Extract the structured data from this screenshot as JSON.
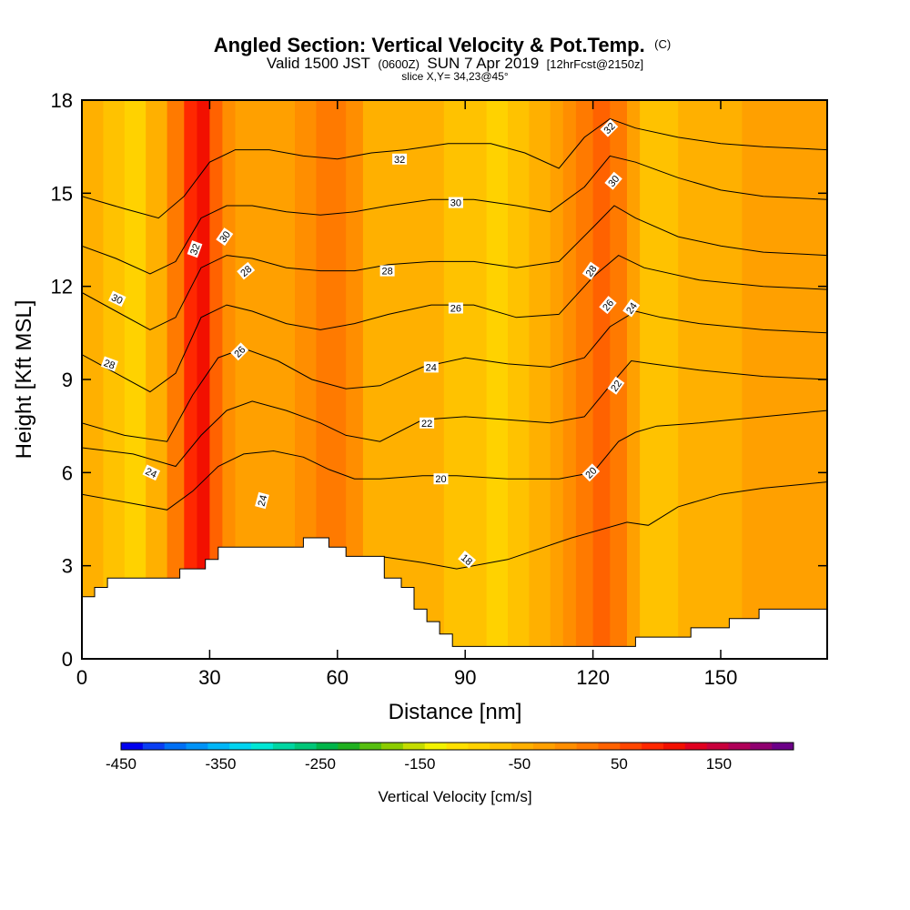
{
  "header": {
    "title_main": "Angled Section: Vertical Velocity & Pot.Temp.",
    "title_copyright": "(C)",
    "valid_prefix": "Valid 1500 JST",
    "valid_utc": "(0600Z)",
    "valid_date": "SUN 7 Apr 2019",
    "valid_fcst": "[12hrFcst@2150z]",
    "slice": "slice X,Y= 34,23@45°"
  },
  "chart_data": {
    "type": "heatmap",
    "xlabel": "Distance [nm]",
    "ylabel": "Height [Kft MSL]",
    "xlim": [
      0,
      175
    ],
    "ylim": [
      0,
      18
    ],
    "x_ticks": [
      0,
      30,
      60,
      90,
      120,
      150
    ],
    "y_ticks": [
      0,
      3,
      6,
      9,
      12,
      15,
      18
    ],
    "field_profile": {
      "x": [
        0,
        5,
        10,
        15,
        20,
        24,
        27,
        30,
        33,
        36,
        40,
        45,
        50,
        55,
        58,
        62,
        66,
        70,
        75,
        80,
        85,
        90,
        95,
        100,
        105,
        110,
        113,
        116,
        120,
        124,
        128,
        131,
        135,
        140,
        145,
        150,
        155,
        160,
        165,
        170,
        175
      ],
      "vertical_velocity_cm_s": [
        20,
        5,
        -35,
        -20,
        20,
        130,
        200,
        150,
        60,
        40,
        25,
        30,
        40,
        70,
        100,
        95,
        40,
        5,
        10,
        15,
        5,
        -10,
        -40,
        -20,
        0,
        30,
        60,
        80,
        100,
        110,
        60,
        10,
        -40,
        -5,
        20,
        15,
        30,
        25,
        40,
        30,
        20
      ]
    },
    "terrain": {
      "x": [
        0,
        3,
        3,
        6,
        6,
        23,
        23,
        29,
        29,
        32,
        32,
        36,
        36,
        52,
        52,
        58,
        58,
        62,
        62,
        71,
        71,
        75,
        75,
        78,
        78,
        81,
        81,
        84,
        84,
        87,
        87,
        130,
        130,
        143,
        143,
        152,
        152,
        159,
        159,
        175
      ],
      "height_kft": [
        2.0,
        2.0,
        2.3,
        2.3,
        2.6,
        2.6,
        2.9,
        2.9,
        3.2,
        3.2,
        3.6,
        3.6,
        3.6,
        3.6,
        3.9,
        3.9,
        3.6,
        3.6,
        3.3,
        3.3,
        2.6,
        2.6,
        2.3,
        2.3,
        1.6,
        1.6,
        1.2,
        1.2,
        0.8,
        0.8,
        0.4,
        0.4,
        0.7,
        0.7,
        1.0,
        1.0,
        1.3,
        1.3,
        1.6,
        1.6
      ]
    },
    "theta_contours": [
      {
        "label": "18",
        "x": [
          70,
          80,
          88,
          100,
          115,
          128,
          133,
          140,
          150,
          160,
          175
        ],
        "height_kft": [
          3.3,
          3.1,
          2.9,
          3.2,
          3.9,
          4.4,
          4.3,
          4.9,
          5.3,
          5.5,
          5.7
        ]
      },
      {
        "label": "20",
        "x": [
          0,
          12,
          20,
          26,
          32,
          38,
          45,
          52,
          58,
          64,
          70,
          80,
          88,
          100,
          112,
          120,
          126,
          130,
          135,
          145,
          160,
          175
        ],
        "height_kft": [
          5.3,
          5.0,
          4.8,
          5.4,
          6.2,
          6.6,
          6.7,
          6.5,
          6.1,
          5.8,
          5.8,
          5.9,
          5.9,
          5.8,
          5.8,
          6.0,
          7.0,
          7.3,
          7.5,
          7.6,
          7.8,
          8.0
        ]
      },
      {
        "label": "22",
        "x": [
          0,
          12,
          22,
          28,
          34,
          40,
          48,
          56,
          62,
          70,
          80,
          90,
          100,
          110,
          118,
          124,
          129,
          134,
          145,
          160,
          175
        ],
        "height_kft": [
          6.8,
          6.6,
          6.2,
          7.2,
          8.0,
          8.3,
          8.0,
          7.6,
          7.2,
          7.0,
          7.7,
          7.8,
          7.7,
          7.6,
          7.8,
          8.8,
          9.6,
          9.5,
          9.3,
          9.1,
          9.0
        ]
      },
      {
        "label": "24",
        "x": [
          0,
          10,
          20,
          26,
          32,
          38,
          46,
          54,
          62,
          70,
          80,
          90,
          100,
          110,
          118,
          124,
          130,
          136,
          145,
          160,
          175
        ],
        "height_kft": [
          7.6,
          7.2,
          7.0,
          8.5,
          9.7,
          10.0,
          9.6,
          9.0,
          8.7,
          8.8,
          9.4,
          9.7,
          9.5,
          9.4,
          9.7,
          10.7,
          11.2,
          11.0,
          10.8,
          10.6,
          10.5
        ]
      },
      {
        "label": "26",
        "x": [
          0,
          8,
          16,
          22,
          28,
          34,
          40,
          48,
          56,
          64,
          72,
          82,
          92,
          102,
          112,
          120,
          126,
          132,
          145,
          160,
          175
        ],
        "height_kft": [
          9.8,
          9.2,
          8.6,
          9.2,
          11.0,
          11.4,
          11.2,
          10.8,
          10.6,
          10.8,
          11.1,
          11.4,
          11.4,
          11.0,
          11.1,
          12.3,
          13.0,
          12.6,
          12.2,
          12.0,
          11.9
        ]
      },
      {
        "label": "28",
        "x": [
          0,
          8,
          16,
          22,
          28,
          34,
          40,
          48,
          56,
          64,
          72,
          82,
          92,
          102,
          112,
          120,
          125,
          130,
          140,
          150,
          160,
          175
        ],
        "height_kft": [
          11.8,
          11.2,
          10.6,
          11.0,
          12.6,
          13.0,
          12.9,
          12.6,
          12.5,
          12.5,
          12.7,
          12.8,
          12.8,
          12.6,
          12.8,
          13.9,
          14.6,
          14.2,
          13.6,
          13.3,
          13.1,
          13.0
        ]
      },
      {
        "label": "30",
        "x": [
          0,
          8,
          16,
          22,
          28,
          34,
          40,
          48,
          56,
          64,
          72,
          82,
          92,
          102,
          110,
          118,
          124,
          130,
          140,
          150,
          160,
          175
        ],
        "height_kft": [
          13.3,
          12.9,
          12.4,
          12.8,
          14.2,
          14.6,
          14.6,
          14.4,
          14.3,
          14.4,
          14.6,
          14.8,
          14.8,
          14.6,
          14.4,
          15.2,
          16.2,
          16.0,
          15.5,
          15.1,
          14.9,
          14.8
        ]
      },
      {
        "label": "32",
        "x": [
          0,
          10,
          18,
          24,
          30,
          36,
          44,
          52,
          60,
          68,
          76,
          86,
          96,
          104,
          112,
          118,
          124,
          130,
          140,
          150,
          160,
          175
        ],
        "height_kft": [
          14.9,
          14.5,
          14.2,
          14.9,
          16.0,
          16.4,
          16.4,
          16.2,
          16.1,
          16.3,
          16.4,
          16.6,
          16.6,
          16.3,
          15.8,
          16.8,
          17.4,
          17.1,
          16.8,
          16.6,
          16.5,
          16.4
        ]
      }
    ],
    "theta_labels": [
      {
        "text": "32",
        "x": 26.5,
        "y": 13.2,
        "angle": -70
      },
      {
        "text": "30",
        "x": 33.5,
        "y": 13.6,
        "angle": -55
      },
      {
        "text": "28",
        "x": 38.5,
        "y": 12.5,
        "angle": -40
      },
      {
        "text": "26",
        "x": 37.0,
        "y": 9.9,
        "angle": -45
      },
      {
        "text": "30",
        "x": 8.3,
        "y": 11.6,
        "angle": 25
      },
      {
        "text": "28",
        "x": 6.5,
        "y": 9.5,
        "angle": 20
      },
      {
        "text": "24",
        "x": 16.3,
        "y": 6.0,
        "angle": 25
      },
      {
        "text": "24",
        "x": 42.3,
        "y": 5.1,
        "angle": -75
      },
      {
        "text": "32",
        "x": 74.6,
        "y": 16.1,
        "angle": 0
      },
      {
        "text": "30",
        "x": 87.8,
        "y": 14.7,
        "angle": 0
      },
      {
        "text": "28",
        "x": 71.7,
        "y": 12.5,
        "angle": 0
      },
      {
        "text": "26",
        "x": 87.8,
        "y": 11.3,
        "angle": 0
      },
      {
        "text": "24",
        "x": 82.0,
        "y": 9.4,
        "angle": 0
      },
      {
        "text": "22",
        "x": 81.0,
        "y": 7.6,
        "angle": 0
      },
      {
        "text": "20",
        "x": 84.3,
        "y": 5.8,
        "angle": 0
      },
      {
        "text": "18",
        "x": 90.4,
        "y": 3.2,
        "angle": 40
      },
      {
        "text": "32",
        "x": 123.8,
        "y": 17.1,
        "angle": -45
      },
      {
        "text": "30",
        "x": 124.8,
        "y": 15.4,
        "angle": -50
      },
      {
        "text": "28",
        "x": 119.5,
        "y": 12.5,
        "angle": -55
      },
      {
        "text": "26",
        "x": 123.5,
        "y": 11.4,
        "angle": -50
      },
      {
        "text": "24",
        "x": 129.0,
        "y": 11.3,
        "angle": -55
      },
      {
        "text": "22",
        "x": 125.4,
        "y": 8.8,
        "angle": -55
      },
      {
        "text": "20",
        "x": 119.5,
        "y": 6.0,
        "angle": -45
      }
    ],
    "colorbar": {
      "label": "Vertical Velocity [cm/s]",
      "min": -450,
      "max": 225,
      "step": 25,
      "tick_values": [
        -450,
        -350,
        -250,
        -150,
        -50,
        50,
        150
      ],
      "colors": [
        "#0000ee",
        "#0a3ef2",
        "#0070f5",
        "#0093f7",
        "#00b6f7",
        "#00d3f0",
        "#00e6d4",
        "#00d6a2",
        "#00c678",
        "#00b54a",
        "#20b020",
        "#56be10",
        "#8ccc00",
        "#c4dc00",
        "#f2f200",
        "#ffe000",
        "#ffd200",
        "#ffc200",
        "#ffb000",
        "#ffa000",
        "#ff8e00",
        "#ff7a00",
        "#ff6200",
        "#ff4600",
        "#ff2800",
        "#f21000",
        "#e00020",
        "#c8003c",
        "#b00058",
        "#900070",
        "#6c0088"
      ]
    }
  }
}
